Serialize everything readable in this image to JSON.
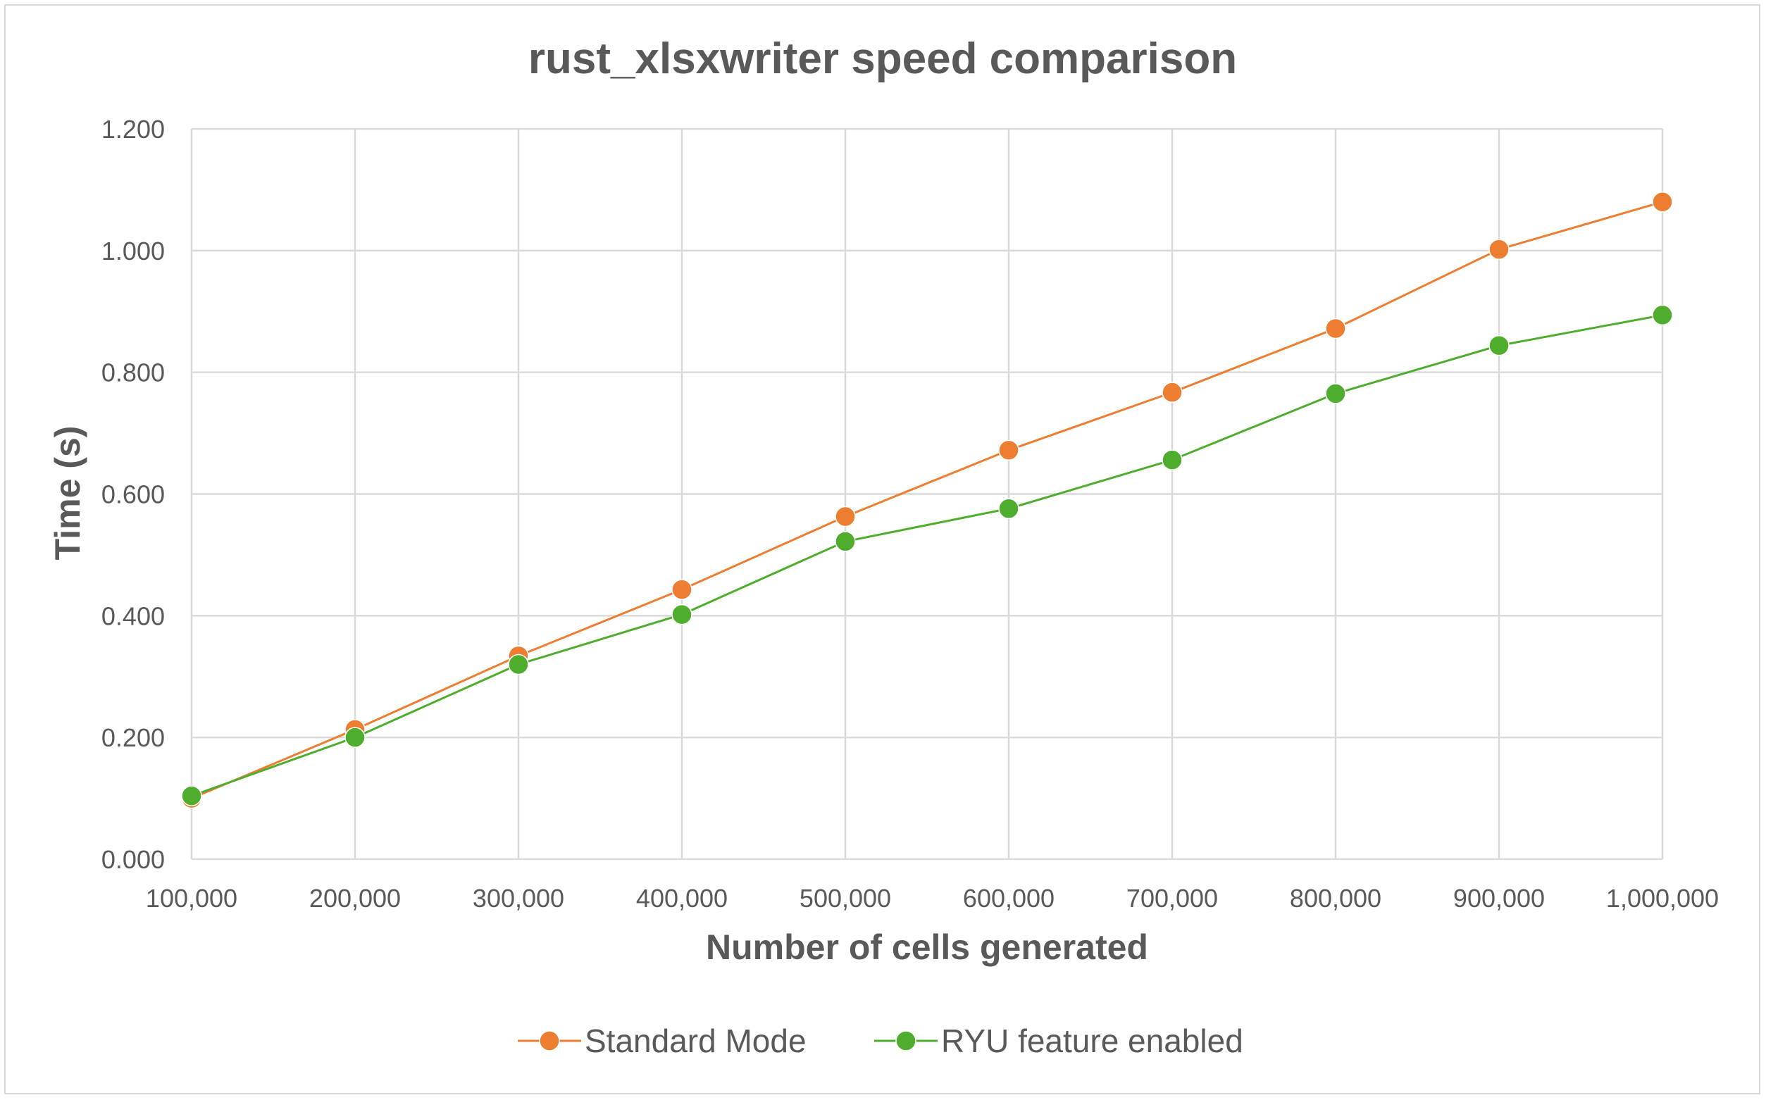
{
  "chart_data": {
    "type": "line",
    "title": "rust_xlsxwriter speed comparison",
    "xlabel": "Number of cells generated",
    "ylabel": "Time (s)",
    "categories": [
      "100,000",
      "200,000",
      "300,000",
      "400,000",
      "500,000",
      "600,000",
      "700,000",
      "800,000",
      "900,000",
      "1,000,000"
    ],
    "ylim": [
      0,
      1.2
    ],
    "y_ticks": [
      "0.000",
      "0.200",
      "0.400",
      "0.600",
      "0.800",
      "1.000",
      "1.200"
    ],
    "grid": true,
    "legend_position": "bottom",
    "series": [
      {
        "name": "Standard Mode",
        "color": "#ed7d31",
        "values": [
          0.1,
          0.213,
          0.334,
          0.443,
          0.563,
          0.672,
          0.767,
          0.872,
          1.002,
          1.08
        ]
      },
      {
        "name": "RYU feature enabled",
        "color": "#4fad2e",
        "values": [
          0.104,
          0.2,
          0.32,
          0.402,
          0.522,
          0.576,
          0.656,
          0.765,
          0.844,
          0.894
        ]
      }
    ]
  }
}
